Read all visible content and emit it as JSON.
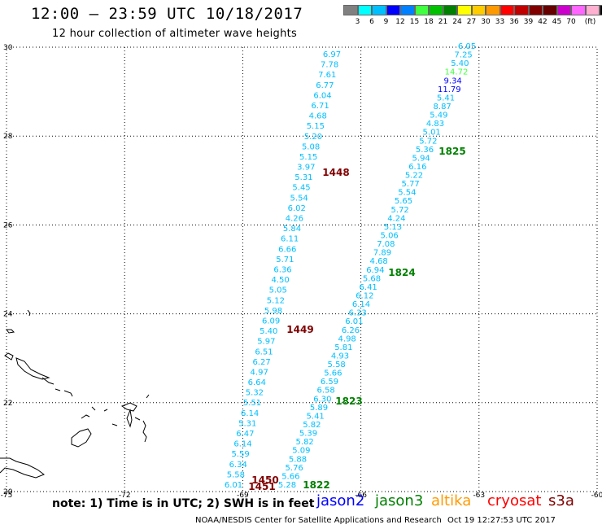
{
  "header": {
    "title": "12:00 – 23:59 UTC 10/18/2017",
    "subtitle": "12 hour collection of altimeter wave heights"
  },
  "colorbar": {
    "colors": [
      "#808080",
      "#00ffff",
      "#00bfff",
      "#0000ff",
      "#0080ff",
      "#40ff40",
      "#00c000",
      "#008000",
      "#ffff00",
      "#ffcc00",
      "#ff9900",
      "#ff0000",
      "#c00000",
      "#800000",
      "#660000",
      "#cc00cc",
      "#ff66ff",
      "#ffb0d0",
      "#000000"
    ],
    "labels": [
      "3",
      "6",
      "9",
      "12",
      "15",
      "18",
      "21",
      "24",
      "27",
      "30",
      "33",
      "36",
      "39",
      "42",
      "45",
      "70",
      "(ft)"
    ]
  },
  "map": {
    "lon_ticks": [
      "-75",
      "-72",
      "-69",
      "-66",
      "-63",
      "-60"
    ],
    "lat_ticks": [
      "30",
      "28",
      "26",
      "24",
      "22",
      "20"
    ],
    "track_a": {
      "values": [
        "6.97",
        "7.78",
        "7.61",
        "6.77",
        "6.04",
        "6.71",
        "4.68",
        "5.15",
        "5.20",
        "5.08",
        "5.15",
        "3.97",
        "5.31",
        "5.45",
        "5.54",
        "6.02",
        "4.26",
        "5.84",
        "6.11",
        "6.66",
        "5.71",
        "6.36",
        "4.50",
        "5.05",
        "5.12",
        "5.98",
        "6.09",
        "5.40",
        "5.97",
        "6.51",
        "6.27",
        "4.97",
        "6.64",
        "5.32",
        "5.51",
        "6.14",
        "5.31",
        "6.47",
        "6.14",
        "5.59",
        "6.34",
        "5.58",
        "6.01"
      ],
      "color": "#00bfff"
    },
    "track_b": {
      "values": [
        "6.05",
        "7.25",
        "5.40",
        "14.72",
        "9.34",
        "11.79",
        "5.41",
        "8.87",
        "5.49",
        "4.83",
        "5.01",
        "5.72",
        "5.36",
        "5.94",
        "6.16",
        "5.22",
        "5.77",
        "5.54",
        "5.65",
        "5.72",
        "4.24",
        "5.13",
        "5.06",
        "7.08",
        "7.89",
        "4.68",
        "6.94",
        "5.68",
        "6.41",
        "6.12",
        "6.14",
        "6.33",
        "6.01",
        "6.26",
        "4.98",
        "5.81",
        "4.93",
        "5.58",
        "5.66",
        "6.59",
        "6.58",
        "6.30",
        "5.89",
        "5.41",
        "5.82",
        "5.39",
        "5.82",
        "5.09",
        "5.88",
        "5.76",
        "5.66",
        "5.28"
      ],
      "color": "#00bfff",
      "special": {
        "14.72": "#40ff40",
        "9.34": "#0000ff",
        "11.79": "#0000ff"
      }
    },
    "time_labels": [
      {
        "text": "1825",
        "color": "#008000"
      },
      {
        "text": "1824",
        "color": "#008000"
      },
      {
        "text": "1823",
        "color": "#008000"
      },
      {
        "text": "1822",
        "color": "#008000"
      },
      {
        "text": "1448",
        "color": "#800000"
      },
      {
        "text": "1449",
        "color": "#800000"
      },
      {
        "text": "1450",
        "color": "#800000"
      },
      {
        "text": "1451",
        "color": "#800000"
      }
    ]
  },
  "footer": {
    "note": "note: 1) Time is in UTC; 2) SWH is in feet",
    "legend": [
      {
        "label": "jason2",
        "color": "#0000ff"
      },
      {
        "label": "jason3",
        "color": "#008000"
      },
      {
        "label": "altika",
        "color": "#ff9900"
      },
      {
        "label": "cryosat",
        "color": "#ff0000"
      },
      {
        "label": "s3a",
        "color": "#800000"
      }
    ],
    "credit": "NOAA/NESDIS Center for Satellite Applications and Research",
    "timestamp": "Oct 19 12:27:53 UTC 2017"
  }
}
